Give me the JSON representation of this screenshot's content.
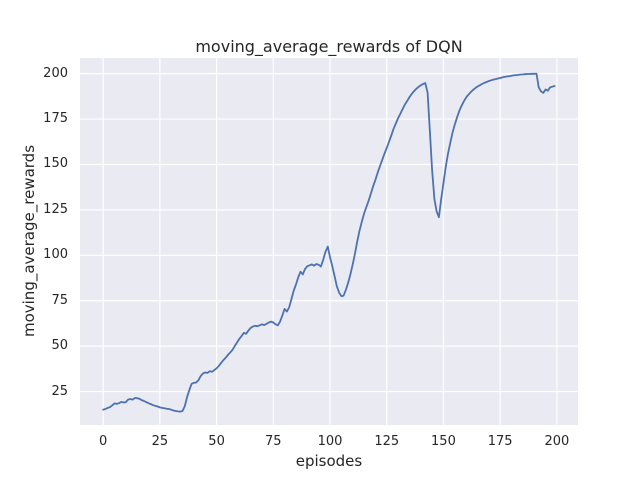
{
  "chart_data": {
    "type": "line",
    "title": "moving_average_rewards of DQN",
    "xlabel": "episodes",
    "ylabel": "moving_average_rewards",
    "grid": true,
    "legend": "none",
    "xlim": [
      -10.2,
      209.3
    ],
    "ylim": [
      6.6,
      208.6
    ],
    "xticks": [
      0,
      25,
      50,
      75,
      100,
      125,
      150,
      175,
      200
    ],
    "yticks": [
      25,
      50,
      75,
      100,
      125,
      150,
      175,
      200
    ],
    "style": {
      "line_color": "#4C72B0",
      "plot_bg": "#EAEAF2",
      "grid_color": "#FFFFFF",
      "text_color": "#262626",
      "figure_bg": "#FFFFFF"
    },
    "series": [
      {
        "name": "moving_average_rewards",
        "x_start": 0,
        "x_step": 1,
        "y": [
          15.0,
          15.4,
          16.0,
          16.4,
          17.4,
          18.5,
          18.2,
          18.6,
          19.3,
          19.0,
          19.2,
          20.6,
          20.9,
          20.5,
          21.5,
          21.3,
          21.0,
          20.3,
          19.8,
          19.2,
          18.6,
          18.1,
          17.5,
          17.1,
          16.8,
          16.3,
          16.0,
          15.8,
          15.5,
          15.4,
          15.0,
          14.6,
          14.3,
          14.1,
          14.0,
          14.3,
          17.0,
          22.0,
          26.0,
          29.3,
          29.8,
          30.0,
          31.2,
          33.5,
          35.0,
          35.5,
          35.3,
          36.2,
          35.9,
          36.8,
          37.8,
          39.2,
          40.8,
          42.3,
          43.6,
          45.2,
          46.5,
          48.0,
          50.0,
          52.0,
          54.0,
          55.5,
          57.3,
          56.8,
          58.5,
          60.0,
          60.8,
          61.2,
          61.0,
          61.5,
          62.0,
          61.6,
          62.3,
          63.0,
          63.5,
          63.0,
          62.0,
          61.5,
          63.5,
          67.0,
          70.5,
          69.0,
          71.5,
          76.0,
          80.5,
          84.0,
          88.0,
          91.0,
          89.5,
          92.5,
          94.0,
          94.5,
          95.0,
          94.3,
          95.2,
          94.8,
          93.8,
          97.5,
          102.0,
          104.8,
          99.0,
          94.0,
          88.5,
          83.0,
          79.5,
          77.5,
          77.8,
          81.0,
          85.0,
          89.5,
          95.0,
          101.0,
          107.5,
          113.5,
          118.5,
          123.0,
          126.5,
          130.0,
          134.0,
          138.0,
          141.5,
          145.5,
          149.0,
          152.5,
          156.0,
          159.0,
          162.5,
          166.0,
          169.5,
          172.5,
          175.5,
          178.0,
          180.5,
          183.0,
          185.0,
          187.0,
          188.8,
          190.3,
          191.6,
          192.7,
          193.6,
          194.3,
          194.8,
          189.5,
          169.0,
          147.0,
          131.0,
          124.0,
          121.0,
          131.0,
          140.0,
          148.5,
          156.0,
          162.0,
          167.5,
          172.0,
          176.0,
          179.5,
          182.3,
          184.8,
          186.8,
          188.4,
          189.8,
          191.0,
          192.0,
          192.9,
          193.6,
          194.3,
          194.9,
          195.4,
          195.9,
          196.3,
          196.7,
          197.0,
          197.3,
          197.6,
          197.9,
          198.2,
          198.4,
          198.6,
          198.8,
          199.0,
          199.2,
          199.3,
          199.5,
          199.6,
          199.7,
          199.8,
          199.8,
          199.9,
          199.9,
          200.0,
          192.5,
          190.2,
          189.4,
          191.3,
          190.6,
          192.4,
          192.8,
          193.2
        ]
      }
    ]
  }
}
